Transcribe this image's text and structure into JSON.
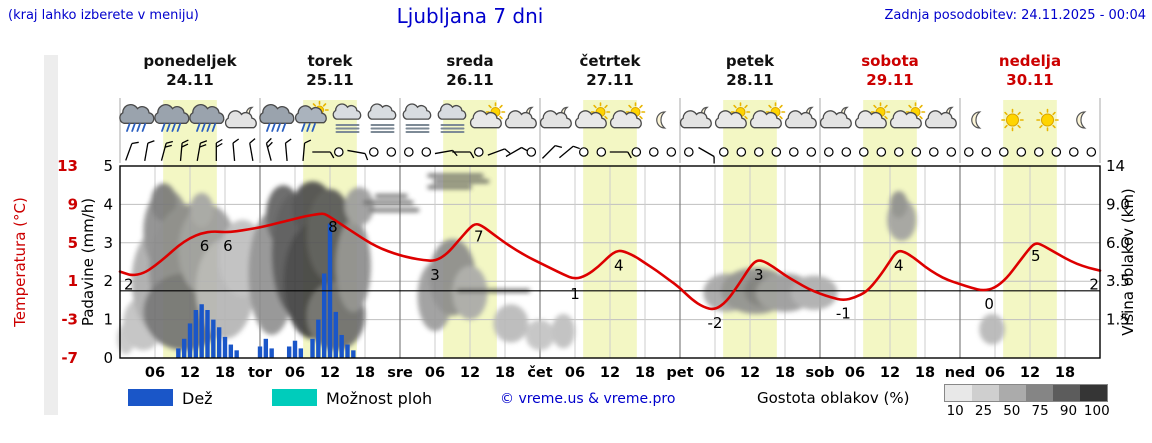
{
  "header": {
    "hint": "(kraj lahko izberete v meniju)",
    "title": "Ljubljana 7 dni",
    "updated": "Zadnja posodobitev: 24.11.2025 - 00:04"
  },
  "colors": {
    "accent_blue": "#0000cc",
    "red": "#cc0000",
    "rain_bar": "#1a56c8",
    "showers_swatch": "#00ccbb",
    "daylight": "#f3f7c4",
    "temp_line": "#dd0000"
  },
  "axes": {
    "temp_label": "Temperatura (°C)",
    "precip_label": "Padavine (mm/h)",
    "cloud_label": "Višina oblakov (km)"
  },
  "days": [
    {
      "name": "ponedeljek",
      "date": "24.11",
      "red": false
    },
    {
      "name": "torek",
      "date": "25.11",
      "red": false
    },
    {
      "name": "sreda",
      "date": "26.11",
      "red": false
    },
    {
      "name": "četrtek",
      "date": "27.11",
      "red": false
    },
    {
      "name": "petek",
      "date": "28.11",
      "red": false
    },
    {
      "name": "sobota",
      "date": "29.11",
      "red": true
    },
    {
      "name": "nedelja",
      "date": "30.11",
      "red": true
    }
  ],
  "legend": {
    "rain": "Dež",
    "showers": "Možnost ploh",
    "credit": "© vreme.us & vreme.pro",
    "cloud_density": "Gostota oblakov (%)",
    "density_ticks": [
      "10",
      "25",
      "50",
      "75",
      "90",
      "100"
    ]
  },
  "chart_data": {
    "type": "meteogram (line + bar + cloud shading)",
    "x_unit": "hours from Monday 00:00",
    "x_range": [
      0,
      168
    ],
    "temp_axis": {
      "label": "Temperatura (°C)",
      "range": [
        -7,
        13
      ],
      "ticks": [
        13,
        9,
        5,
        1,
        -3,
        -7
      ]
    },
    "precip_axis": {
      "label": "Padavine (mm/h)",
      "range": [
        0,
        5
      ],
      "ticks": [
        5,
        4,
        3,
        2,
        1,
        0
      ]
    },
    "cloud_height_axis": {
      "label": "Višina oblakov (km)",
      "ticks": [
        "14",
        "9.0",
        "6.0",
        "3.5",
        "1.5"
      ]
    },
    "x_ticks_per_day": [
      "06",
      "12",
      "18"
    ],
    "day_abbrevs": [
      "tor",
      "sre",
      "čet",
      "pet",
      "sob",
      "ned"
    ],
    "daylight": {
      "start_hour": 7.4,
      "end_hour": 16.6
    },
    "zero_deg_line_c": 0,
    "temperature_points": [
      [
        0,
        2.0
      ],
      [
        1,
        1.8
      ],
      [
        2,
        1.6
      ],
      [
        4,
        1.8
      ],
      [
        6,
        2.6
      ],
      [
        8,
        3.6
      ],
      [
        10,
        4.7
      ],
      [
        12,
        5.5
      ],
      [
        14,
        6.0
      ],
      [
        16,
        6.2
      ],
      [
        18,
        6.1
      ],
      [
        20,
        6.2
      ],
      [
        22,
        6.4
      ],
      [
        24,
        6.6
      ],
      [
        26,
        6.9
      ],
      [
        28,
        7.2
      ],
      [
        30,
        7.5
      ],
      [
        32,
        7.8
      ],
      [
        34,
        8.0
      ],
      [
        35,
        8.05
      ],
      [
        36,
        7.7
      ],
      [
        38,
        6.9
      ],
      [
        40,
        6.1
      ],
      [
        42,
        5.3
      ],
      [
        44,
        4.6
      ],
      [
        46,
        4.1
      ],
      [
        48,
        3.7
      ],
      [
        50,
        3.4
      ],
      [
        52,
        3.2
      ],
      [
        54,
        3.1
      ],
      [
        56,
        3.8
      ],
      [
        58,
        5.2
      ],
      [
        60,
        6.6
      ],
      [
        61,
        7.0
      ],
      [
        62,
        6.8
      ],
      [
        64,
        5.9
      ],
      [
        66,
        5.0
      ],
      [
        68,
        4.2
      ],
      [
        70,
        3.5
      ],
      [
        72,
        2.9
      ],
      [
        74,
        2.3
      ],
      [
        76,
        1.7
      ],
      [
        78,
        1.2
      ],
      [
        80,
        1.6
      ],
      [
        82,
        2.5
      ],
      [
        84,
        3.7
      ],
      [
        85,
        4.1
      ],
      [
        86,
        4.2
      ],
      [
        88,
        3.7
      ],
      [
        90,
        2.9
      ],
      [
        92,
        2.1
      ],
      [
        94,
        1.2
      ],
      [
        96,
        0.3
      ],
      [
        98,
        -0.9
      ],
      [
        100,
        -1.7
      ],
      [
        102,
        -2.0
      ],
      [
        104,
        -1.1
      ],
      [
        106,
        0.6
      ],
      [
        108,
        2.5
      ],
      [
        109,
        3.1
      ],
      [
        110,
        3.2
      ],
      [
        112,
        2.5
      ],
      [
        114,
        1.6
      ],
      [
        116,
        0.9
      ],
      [
        118,
        0.2
      ],
      [
        120,
        -0.3
      ],
      [
        122,
        -0.7
      ],
      [
        124,
        -1.0
      ],
      [
        126,
        -0.7
      ],
      [
        128,
        -0.1
      ],
      [
        130,
        1.3
      ],
      [
        132,
        3.1
      ],
      [
        133,
        4.0
      ],
      [
        134,
        4.2
      ],
      [
        136,
        3.5
      ],
      [
        138,
        2.5
      ],
      [
        140,
        1.7
      ],
      [
        142,
        1.1
      ],
      [
        144,
        0.7
      ],
      [
        146,
        0.3
      ],
      [
        148,
        0.0
      ],
      [
        150,
        0.3
      ],
      [
        152,
        1.3
      ],
      [
        154,
        2.9
      ],
      [
        156,
        4.5
      ],
      [
        157,
        5.0
      ],
      [
        158,
        4.8
      ],
      [
        160,
        4.1
      ],
      [
        162,
        3.4
      ],
      [
        164,
        2.8
      ],
      [
        166,
        2.4
      ],
      [
        168,
        2.1
      ]
    ],
    "temperature_labels": [
      [
        1.5,
        2
      ],
      [
        14.5,
        6
      ],
      [
        18.5,
        6
      ],
      [
        36.5,
        8
      ],
      [
        54,
        3
      ],
      [
        61.5,
        7
      ],
      [
        78,
        1
      ],
      [
        85.5,
        4
      ],
      [
        102,
        -2
      ],
      [
        109.5,
        3
      ],
      [
        124,
        -1
      ],
      [
        133.5,
        4
      ],
      [
        149,
        0
      ],
      [
        157,
        5
      ],
      [
        167,
        2
      ]
    ],
    "precip_bars_mm": [
      [
        10,
        0.25
      ],
      [
        11,
        0.5
      ],
      [
        12,
        0.9
      ],
      [
        13,
        1.25
      ],
      [
        14,
        1.4
      ],
      [
        15,
        1.25
      ],
      [
        16,
        1.0
      ],
      [
        17,
        0.8
      ],
      [
        18,
        0.55
      ],
      [
        19,
        0.35
      ],
      [
        20,
        0.2
      ],
      [
        24,
        0.3
      ],
      [
        25,
        0.5
      ],
      [
        26,
        0.25
      ],
      [
        29,
        0.3
      ],
      [
        30,
        0.45
      ],
      [
        31,
        0.25
      ],
      [
        33,
        0.5
      ],
      [
        34,
        1.0
      ],
      [
        35,
        2.2
      ],
      [
        36,
        3.5
      ],
      [
        37,
        1.2
      ],
      [
        38,
        0.6
      ],
      [
        39,
        0.35
      ],
      [
        40,
        0.2
      ]
    ],
    "clouds": [
      [
        1,
        0.5,
        1.5,
        0.4,
        "#c5c5c5"
      ],
      [
        4,
        0.9,
        3.5,
        0.7,
        "#c0c0c0"
      ],
      [
        7,
        2.0,
        5,
        1.4,
        "#aaaaaa"
      ],
      [
        8,
        3.3,
        4,
        1.1,
        "#8a8a8a"
      ],
      [
        7.5,
        4.05,
        2.2,
        0.5,
        "#777777"
      ],
      [
        12,
        2.3,
        7,
        1.7,
        "#878787"
      ],
      [
        11,
        1.2,
        7,
        1.0,
        "#6f6f6f"
      ],
      [
        15,
        2.8,
        5,
        1.2,
        "#9a9a9a"
      ],
      [
        18,
        1.8,
        5,
        1.3,
        "#b3b3b3"
      ],
      [
        21,
        2.6,
        4,
        1.0,
        "#bdbdbd"
      ],
      [
        14,
        3.85,
        2,
        0.45,
        "#a3a3a3"
      ],
      [
        26,
        2.2,
        4,
        1.6,
        "#8f8f8f"
      ],
      [
        28,
        3.7,
        3,
        0.8,
        "#5f5f5f"
      ],
      [
        30,
        2.7,
        4,
        1.6,
        "#525252"
      ],
      [
        33,
        3.9,
        3.5,
        0.7,
        "#4a4a4a"
      ],
      [
        33,
        2.0,
        5,
        1.5,
        "#3d3d3d"
      ],
      [
        36,
        3.2,
        4,
        1.2,
        "#525252"
      ],
      [
        37,
        1.1,
        5,
        0.9,
        "#6b6b6b"
      ],
      [
        40,
        2.4,
        3,
        1.2,
        "#8a8a8a"
      ],
      [
        41,
        3.95,
        2.5,
        0.5,
        "#9a9a9a"
      ],
      [
        54,
        1.6,
        3,
        0.9,
        "#9a9a9a"
      ],
      [
        57,
        2.1,
        4,
        1.0,
        "#8a8a8a"
      ],
      [
        60,
        1.7,
        3,
        0.7,
        "#a8a8a8"
      ],
      [
        67,
        0.9,
        3,
        0.5,
        "#b8b8b8"
      ],
      [
        72,
        0.6,
        2.5,
        0.4,
        "#c2c2c2"
      ],
      [
        76,
        0.7,
        2,
        0.45,
        "#bdbdbd"
      ],
      [
        104,
        1.7,
        4,
        0.5,
        "#a5a5a5"
      ],
      [
        109,
        1.75,
        6,
        0.6,
        "#8e8e8e"
      ],
      [
        110,
        1.75,
        3,
        0.4,
        "#7a7a7a"
      ],
      [
        114,
        1.7,
        5,
        0.5,
        "#999999"
      ],
      [
        119,
        1.7,
        4,
        0.45,
        "#ababab"
      ],
      [
        134,
        3.6,
        2.5,
        0.55,
        "#a0a0a0"
      ],
      [
        133.5,
        4.0,
        1.5,
        0.35,
        "#8d8d8d"
      ],
      [
        149.5,
        0.75,
        2.2,
        0.4,
        "#b5b5b5"
      ]
    ],
    "cloud_streaks": [
      [
        42,
        50,
        4.05
      ],
      [
        43,
        51,
        3.85
      ],
      [
        44,
        49,
        4.22
      ],
      [
        53,
        62,
        4.75
      ],
      [
        54,
        63,
        4.6
      ],
      [
        53,
        60,
        4.45
      ],
      [
        58,
        70,
        1.75
      ]
    ],
    "weather_icons": [
      "rain",
      "rain",
      "rain",
      "cloud-moon",
      "rain",
      "sun-cloud-rain",
      "fog",
      "fog",
      "fog",
      "fog",
      "sun-cloud",
      "cloud-moon",
      "cloud-moon",
      "sun-cloud",
      "sun-cloud",
      "moon",
      "cloud-moon",
      "sun-cloud",
      "sun-cloud",
      "cloud-moon",
      "cloud-moon",
      "sun-cloud",
      "sun-cloud",
      "cloud-moon",
      "moon",
      "sun",
      "sun",
      "moon"
    ],
    "wind": [
      "barb:20:1",
      "barb:10:1",
      "barb:15:2",
      "barb:5:2",
      "barb:10:2",
      "barb:0:2",
      "barb:-5:1",
      "barb:-10:1",
      "barb:-15:2",
      "barb:-5:1",
      "barb:5:1",
      "barb:90:1",
      "calm",
      "barb:100:1",
      "calm",
      "calm",
      "calm",
      "calm",
      "barb:80:1",
      "barb:90:1",
      "calm",
      "barb:70:1",
      "barb:60:1",
      "calm",
      "barb:45:1",
      "barb:50:1",
      "calm",
      "calm",
      "barb:90:1",
      "calm",
      "calm",
      "calm",
      "calm",
      "barb:120:1",
      "calm",
      "calm",
      "calm",
      "calm",
      "calm",
      "calm",
      "calm",
      "calm",
      "calm",
      "calm",
      "calm",
      "calm",
      "calm",
      "calm",
      "calm",
      "calm",
      "calm",
      "calm",
      "calm",
      "calm",
      "calm",
      "calm"
    ]
  }
}
